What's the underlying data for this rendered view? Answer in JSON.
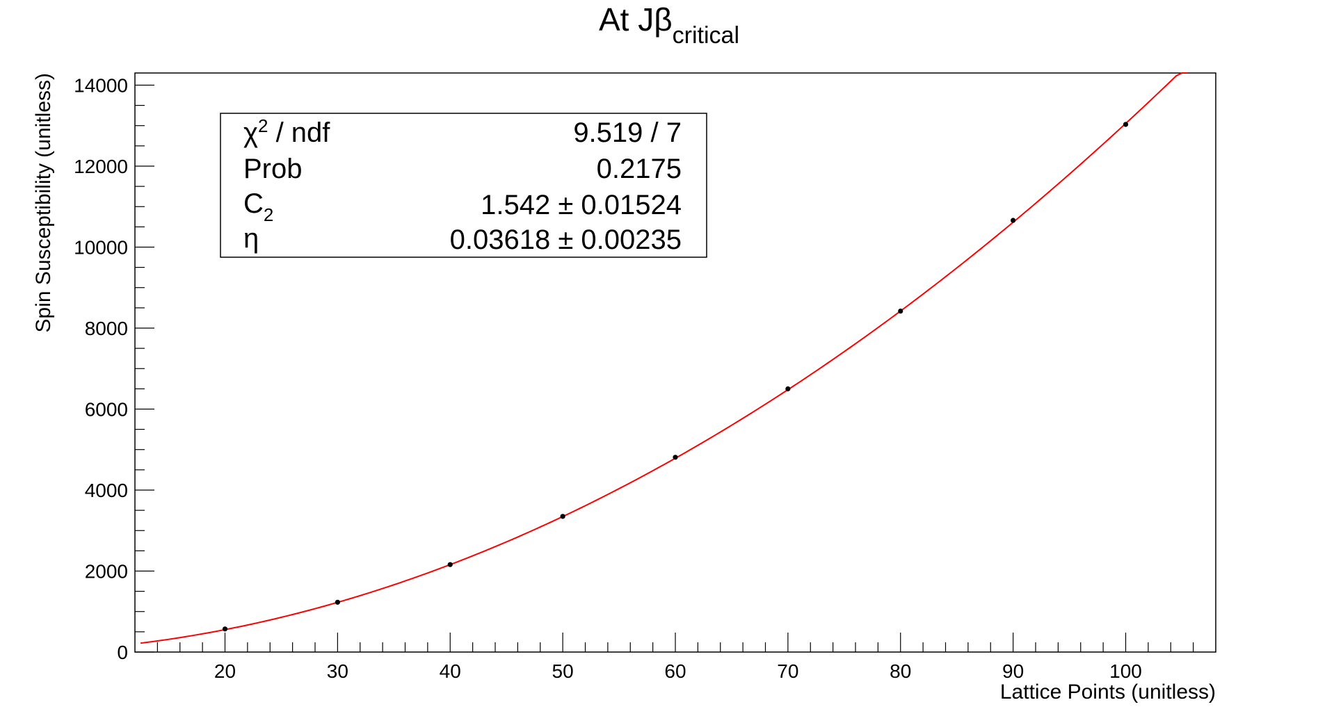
{
  "chart_data": {
    "type": "scatter",
    "title": "At Jβ",
    "title_subscript": "critical",
    "xlabel": "Lattice Points (unitless)",
    "ylabel": "Spin Susceptibility (unitless)",
    "xlim": [
      12,
      108
    ],
    "ylim": [
      0,
      14300
    ],
    "x_ticks": [
      20,
      30,
      40,
      50,
      60,
      70,
      80,
      90,
      100
    ],
    "y_ticks": [
      0,
      2000,
      4000,
      6000,
      8000,
      10000,
      12000,
      14000
    ],
    "grid": false,
    "legend": "none",
    "series": [
      {
        "type": "scatter",
        "x": [
          20,
          30,
          40,
          50,
          60,
          70,
          80,
          90,
          100
        ],
        "y": [
          570,
          1230,
          2160,
          3350,
          4810,
          6500,
          8420,
          10660,
          13030
        ],
        "color": "#000000"
      },
      {
        "type": "line",
        "fit_function": "C2 * x^(2 - eta)",
        "x_range": [
          12.5,
          105.5
        ],
        "color": "#ff0000"
      }
    ],
    "fit_stats": {
      "position": "top-left",
      "rows": [
        {
          "label": "χ",
          "label_sup": "2",
          "label_rest": " / ndf",
          "value": "9.519 / 7"
        },
        {
          "label": "Prob",
          "value": "0.2175"
        },
        {
          "label": "C",
          "label_sub": "2",
          "value": "1.542 ± 0.01524"
        },
        {
          "label": "η",
          "value": "0.03618 ± 0.00235"
        }
      ],
      "params": {
        "C2": 1.542,
        "eta": 0.03618
      }
    }
  }
}
